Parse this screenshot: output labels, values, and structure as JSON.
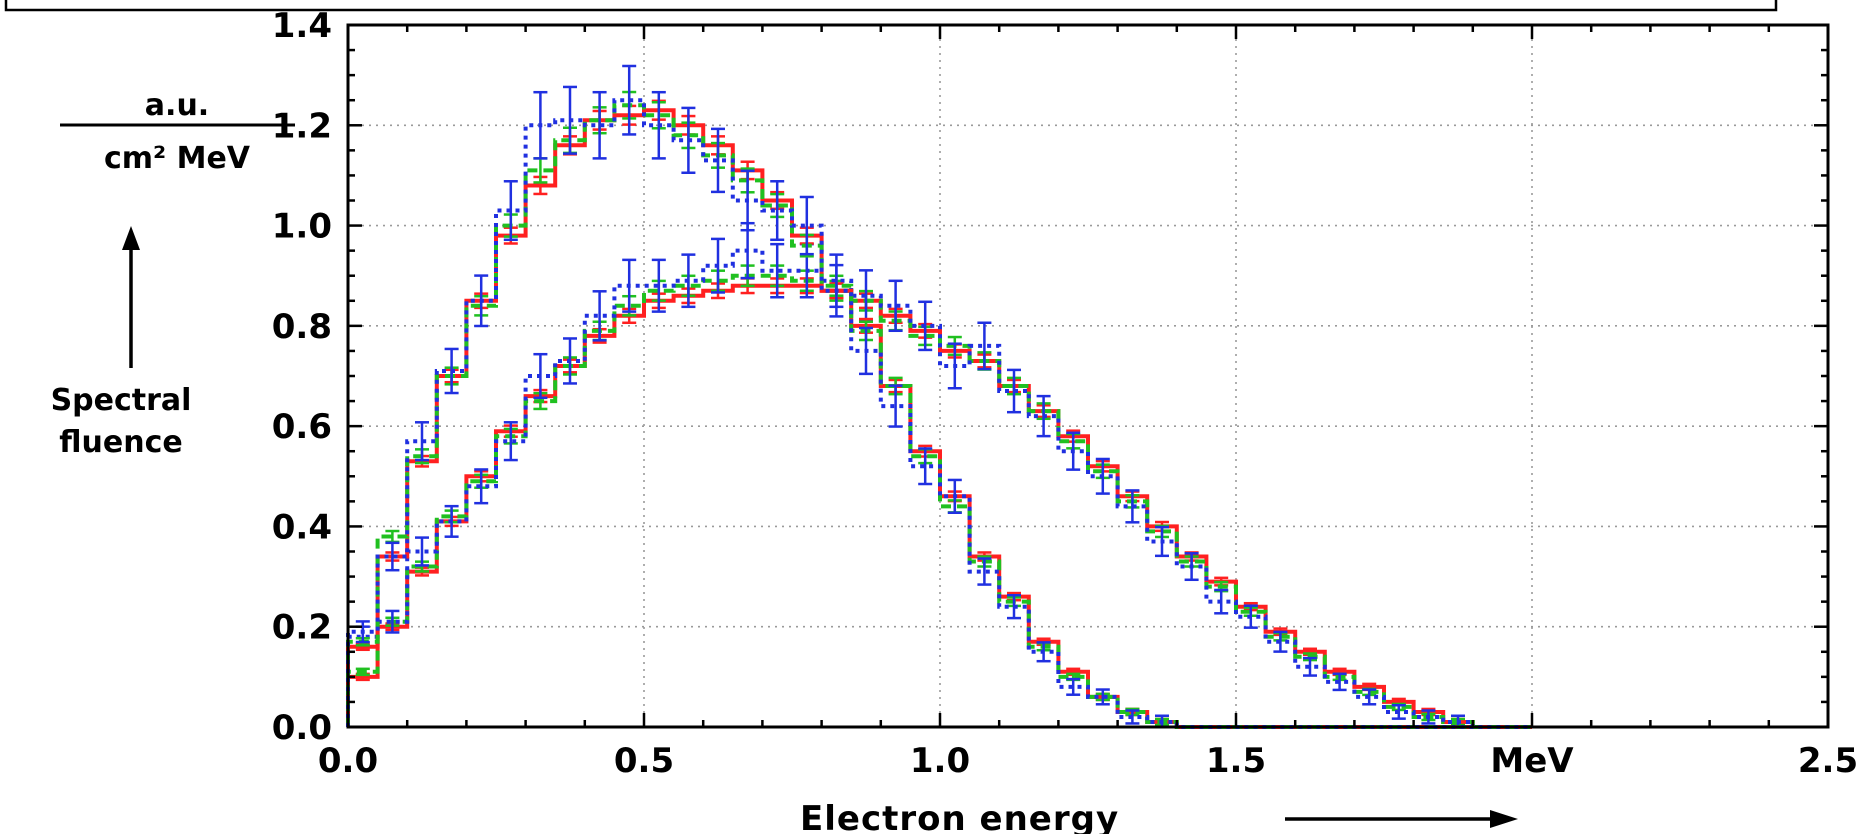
{
  "chart_data": {
    "type": "line",
    "title": "",
    "xlabel": "Electron energy",
    "xunit_tick": "MeV",
    "ylabel": {
      "unit_top": "a.u.",
      "unit_bottom": "cm² MeV",
      "name_line1": "Spectral",
      "name_line2": "fluence"
    },
    "xlim": [
      0.0,
      2.5
    ],
    "ylim": [
      0.0,
      1.4
    ],
    "x_tick_labels": [
      "0.0",
      "0.5",
      "1.0",
      "1.5",
      "MeV",
      "2.5"
    ],
    "y_tick_labels": [
      "0.0",
      "0.2",
      "0.4",
      "0.6",
      "0.8",
      "1.0",
      "1.2",
      "1.4"
    ],
    "grid": true,
    "step": 0.05,
    "bin_edges_start": 0.0,
    "groups": [
      {
        "series": [
          {
            "color": "#ff2020",
            "dash": "solid",
            "values": [
              0.1,
              0.2,
              0.31,
              0.41,
              0.5,
              0.59,
              0.66,
              0.72,
              0.78,
              0.82,
              0.85,
              0.86,
              0.87,
              0.88,
              0.88,
              0.88,
              0.87,
              0.85,
              0.82,
              0.79,
              0.75,
              0.73,
              0.68,
              0.63,
              0.58,
              0.52,
              0.46,
              0.4,
              0.34,
              0.29,
              0.24,
              0.19,
              0.15,
              0.11,
              0.08,
              0.05,
              0.03,
              0.01,
              0.0,
              0.0
            ]
          },
          {
            "color": "#20c020",
            "dash": "dash",
            "values": [
              0.11,
              0.21,
              0.32,
              0.42,
              0.49,
              0.58,
              0.65,
              0.72,
              0.79,
              0.84,
              0.87,
              0.88,
              0.89,
              0.9,
              0.9,
              0.89,
              0.87,
              0.85,
              0.81,
              0.78,
              0.76,
              0.73,
              0.68,
              0.63,
              0.57,
              0.51,
              0.45,
              0.39,
              0.33,
              0.28,
              0.23,
              0.18,
              0.14,
              0.1,
              0.07,
              0.04,
              0.02,
              0.01,
              0.0,
              0.0
            ]
          },
          {
            "color": "#2030e0",
            "dash": "dot",
            "values": [
              0.18,
              0.21,
              0.35,
              0.41,
              0.48,
              0.57,
              0.7,
              0.73,
              0.82,
              0.88,
              0.88,
              0.89,
              0.92,
              0.95,
              0.91,
              0.91,
              0.89,
              0.86,
              0.84,
              0.8,
              0.72,
              0.76,
              0.67,
              0.62,
              0.55,
              0.5,
              0.44,
              0.37,
              0.32,
              0.25,
              0.22,
              0.17,
              0.12,
              0.09,
              0.06,
              0.03,
              0.02,
              0.01,
              0.0,
              0.0
            ]
          }
        ]
      },
      {
        "series": [
          {
            "color": "#ff2020",
            "dash": "solid",
            "values": [
              0.16,
              0.34,
              0.53,
              0.7,
              0.85,
              0.98,
              1.08,
              1.16,
              1.21,
              1.22,
              1.23,
              1.2,
              1.16,
              1.11,
              1.05,
              0.98,
              0.87,
              0.8,
              0.68,
              0.55,
              0.46,
              0.34,
              0.26,
              0.17,
              0.11,
              0.06,
              0.03,
              0.01,
              0.0,
              0.0,
              0.0,
              0.0,
              0.0,
              0.0,
              0.0,
              0.0,
              0.0,
              0.0,
              0.0,
              0.0
            ]
          },
          {
            "color": "#20c020",
            "dash": "dash",
            "values": [
              0.17,
              0.38,
              0.54,
              0.7,
              0.84,
              1.0,
              1.11,
              1.17,
              1.21,
              1.24,
              1.22,
              1.18,
              1.14,
              1.09,
              1.04,
              0.96,
              0.88,
              0.79,
              0.68,
              0.54,
              0.44,
              0.33,
              0.25,
              0.16,
              0.1,
              0.06,
              0.03,
              0.01,
              0.0,
              0.0,
              0.0,
              0.0,
              0.0,
              0.0,
              0.0,
              0.0,
              0.0,
              0.0,
              0.0,
              0.0
            ]
          },
          {
            "color": "#2030e0",
            "dash": "dot",
            "values": [
              0.19,
              0.34,
              0.57,
              0.71,
              0.85,
              1.03,
              1.2,
              1.21,
              1.2,
              1.25,
              1.2,
              1.17,
              1.13,
              1.05,
              1.03,
              1.0,
              0.87,
              0.75,
              0.64,
              0.52,
              0.46,
              0.31,
              0.24,
              0.15,
              0.08,
              0.06,
              0.02,
              0.01,
              0.0,
              0.0,
              0.0,
              0.0,
              0.0,
              0.0,
              0.0,
              0.0,
              0.0,
              0.0,
              0.0,
              0.0
            ]
          }
        ]
      }
    ]
  }
}
